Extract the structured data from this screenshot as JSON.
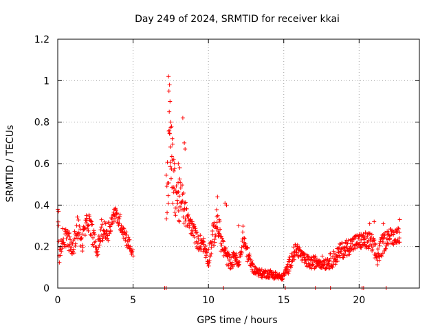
{
  "chart_data": {
    "type": "scatter",
    "title": "Day 249 of 2024, SRMTID for receiver kkai",
    "xlabel": "GPS time / hours",
    "ylabel": "SRMTID / TECUs",
    "xlim": [
      0,
      24
    ],
    "ylim": [
      0,
      1.2
    ],
    "x_ticks": [
      0,
      5,
      10,
      15,
      20
    ],
    "x_tick_labels": [
      "0",
      "5",
      "10",
      "15",
      "20"
    ],
    "y_ticks": [
      0,
      0.2,
      0.4,
      0.6,
      0.8,
      1.0,
      1.2
    ],
    "y_tick_labels": [
      "0",
      "0.2",
      "0.4",
      "0.6",
      "0.8",
      "1",
      "1.2"
    ],
    "grid": true,
    "marker": "+",
    "series": [
      {
        "name": "SRMTID",
        "color": "#ff0000",
        "profile": [
          [
            0.0,
            0.36,
            0.05
          ],
          [
            0.1,
            0.15,
            0.03
          ],
          [
            0.3,
            0.24,
            0.05
          ],
          [
            0.6,
            0.25,
            0.05
          ],
          [
            1.0,
            0.18,
            0.04
          ],
          [
            1.3,
            0.3,
            0.06
          ],
          [
            1.6,
            0.22,
            0.05
          ],
          [
            2.0,
            0.33,
            0.05
          ],
          [
            2.4,
            0.24,
            0.05
          ],
          [
            2.6,
            0.17,
            0.03
          ],
          [
            2.9,
            0.28,
            0.05
          ],
          [
            3.3,
            0.27,
            0.05
          ],
          [
            3.8,
            0.36,
            0.03
          ],
          [
            4.2,
            0.31,
            0.04
          ],
          [
            4.5,
            0.25,
            0.04
          ],
          [
            4.8,
            0.2,
            0.03
          ],
          [
            5.0,
            0.16,
            0.02
          ]
        ],
        "profile2": [
          [
            7.2,
            0.45,
            0.15
          ],
          [
            7.45,
            0.65,
            0.22
          ],
          [
            7.7,
            0.5,
            0.12
          ],
          [
            8.0,
            0.42,
            0.12
          ],
          [
            8.3,
            0.4,
            0.1
          ],
          [
            8.6,
            0.33,
            0.04
          ],
          [
            9.0,
            0.28,
            0.04
          ],
          [
            9.3,
            0.22,
            0.04
          ],
          [
            9.6,
            0.22,
            0.04
          ],
          [
            10.0,
            0.15,
            0.05
          ],
          [
            10.3,
            0.25,
            0.06
          ],
          [
            10.6,
            0.32,
            0.08
          ],
          [
            10.9,
            0.21,
            0.05
          ],
          [
            11.2,
            0.15,
            0.04
          ],
          [
            11.5,
            0.12,
            0.03
          ],
          [
            11.8,
            0.16,
            0.04
          ],
          [
            12.0,
            0.1,
            0.02
          ],
          [
            12.3,
            0.25,
            0.05
          ],
          [
            12.6,
            0.16,
            0.04
          ],
          [
            13.0,
            0.09,
            0.02
          ],
          [
            13.5,
            0.07,
            0.02
          ],
          [
            14.0,
            0.07,
            0.02
          ],
          [
            14.5,
            0.06,
            0.02
          ],
          [
            14.9,
            0.05,
            0.01
          ],
          [
            15.3,
            0.1,
            0.03
          ],
          [
            15.6,
            0.16,
            0.04
          ],
          [
            15.9,
            0.19,
            0.03
          ],
          [
            16.3,
            0.14,
            0.03
          ],
          [
            16.8,
            0.12,
            0.03
          ],
          [
            17.3,
            0.13,
            0.03
          ],
          [
            17.8,
            0.12,
            0.03
          ],
          [
            18.3,
            0.14,
            0.04
          ],
          [
            18.8,
            0.18,
            0.04
          ],
          [
            19.3,
            0.2,
            0.04
          ],
          [
            19.8,
            0.22,
            0.04
          ],
          [
            20.3,
            0.23,
            0.04
          ],
          [
            20.8,
            0.22,
            0.05
          ],
          [
            21.2,
            0.15,
            0.05
          ],
          [
            21.5,
            0.2,
            0.05
          ],
          [
            21.9,
            0.25,
            0.04
          ],
          [
            22.3,
            0.25,
            0.04
          ],
          [
            22.7,
            0.26,
            0.04
          ]
        ],
        "highlight_points": [
          [
            7.35,
            1.02
          ],
          [
            7.42,
            0.98
          ],
          [
            7.38,
            0.95
          ],
          [
            7.45,
            0.9
          ],
          [
            7.4,
            0.85
          ],
          [
            7.5,
            0.8
          ],
          [
            7.55,
            0.78
          ],
          [
            7.6,
            0.72
          ],
          [
            7.48,
            0.68
          ],
          [
            8.3,
            0.82
          ],
          [
            8.4,
            0.7
          ],
          [
            8.45,
            0.67
          ],
          [
            7.7,
            0.62
          ],
          [
            8.0,
            0.6
          ],
          [
            8.1,
            0.58
          ],
          [
            0.0,
            0.38
          ],
          [
            0.05,
            0.37
          ],
          [
            3.75,
            0.38
          ],
          [
            10.6,
            0.44
          ],
          [
            11.1,
            0.41
          ],
          [
            11.2,
            0.4
          ],
          [
            12.0,
            0.3
          ],
          [
            20.7,
            0.31
          ],
          [
            21.0,
            0.32
          ],
          [
            21.6,
            0.31
          ],
          [
            22.7,
            0.33
          ]
        ],
        "zero_points": [
          7.1,
          7.2,
          11.0,
          15.1,
          17.1,
          18.1,
          20.2,
          20.3,
          21.8
        ]
      }
    ]
  }
}
